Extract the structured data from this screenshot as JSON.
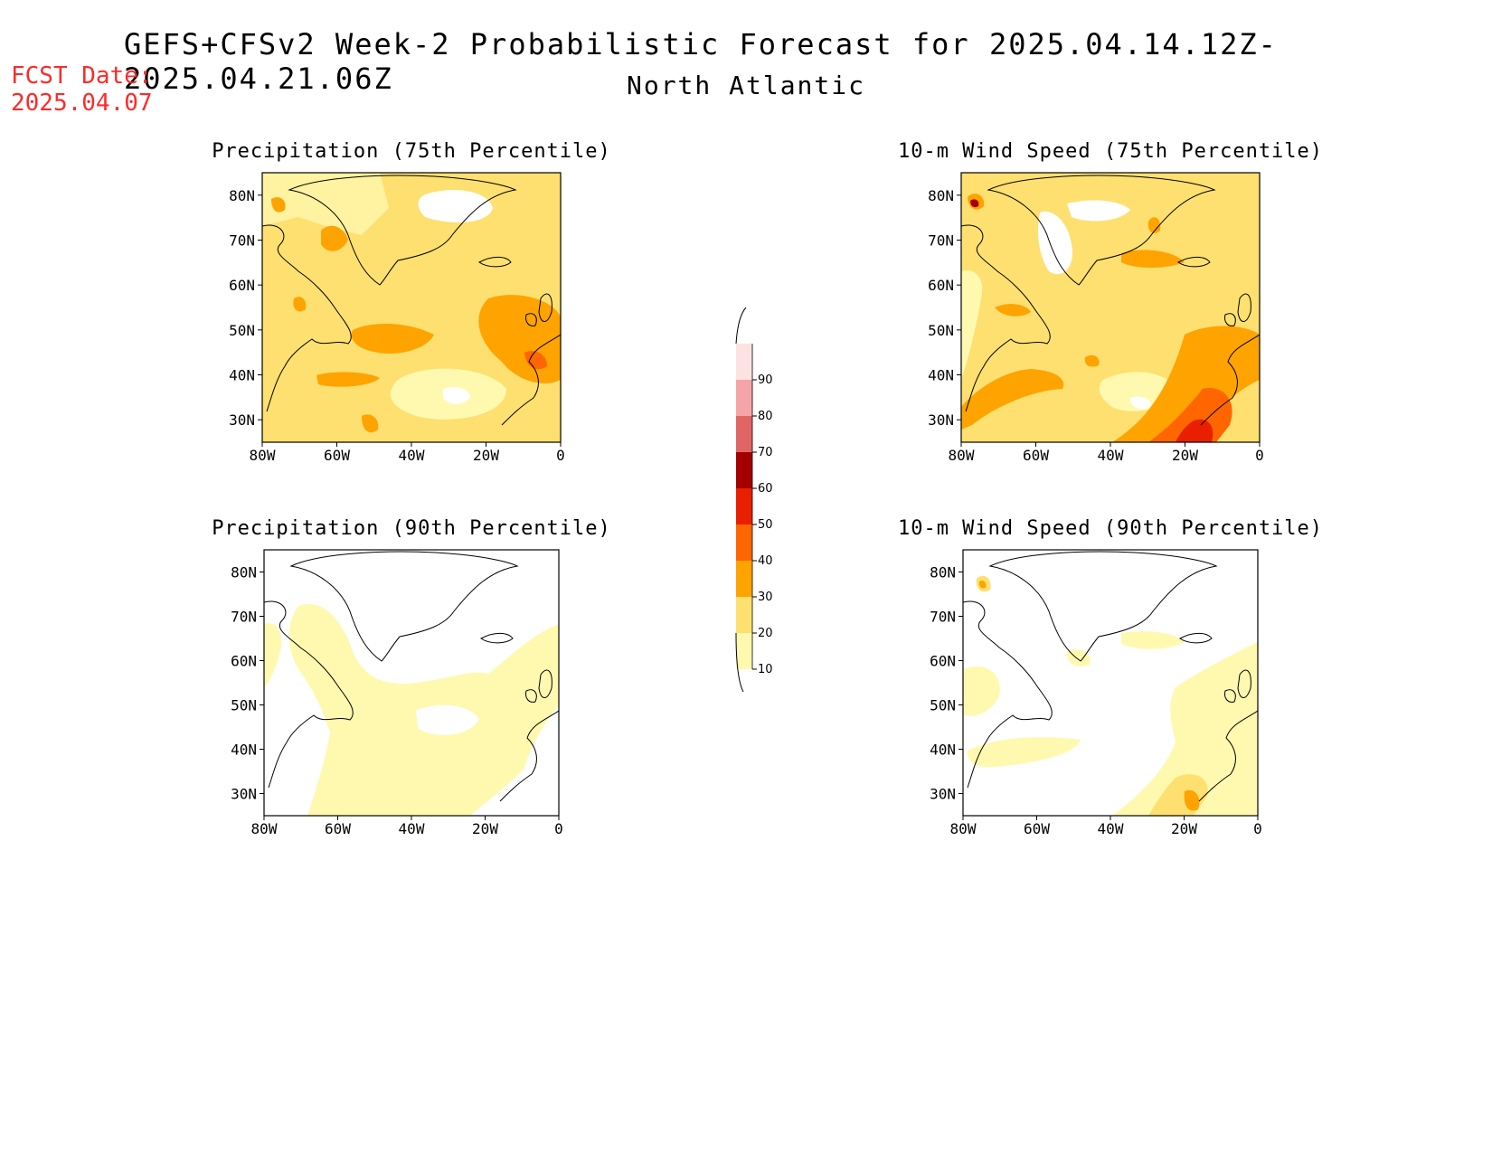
{
  "header": {
    "title": "GEFS+CFSv2 Week-2 Probabilistic Forecast for 2025.04.14.12Z-2025.04.21.06Z",
    "subtitle": "North Atlantic",
    "fcst_label": "FCST Date:",
    "fcst_date": "2025.04.07"
  },
  "colors": {
    "fcst_text": "#ff2a2a",
    "levels": [
      "#fff9b0",
      "#fde070",
      "#ffa300",
      "#ff6600",
      "#e82000",
      "#a50000",
      "#e06666",
      "#f5a5a5",
      "#fde2e2"
    ],
    "coastline": "#000000"
  },
  "colorbar": {
    "ticks": [
      "10",
      "20",
      "30",
      "40",
      "50",
      "60",
      "70",
      "80",
      "90"
    ]
  },
  "map_axes": {
    "lat_labels": [
      "80N",
      "70N",
      "60N",
      "50N",
      "40N",
      "30N"
    ],
    "lon_labels": [
      "80W",
      "60W",
      "40W",
      "20W",
      "0"
    ]
  },
  "panels": [
    {
      "id": "precip75",
      "title": "Precipitation (75th Percentile)",
      "base_level": 1
    },
    {
      "id": "wind75",
      "title": "10-m Wind Speed (75th Percentile)",
      "base_level": 1
    },
    {
      "id": "precip90",
      "title": "Precipitation (90th Percentile)",
      "base_level": -1
    },
    {
      "id": "wind90",
      "title": "10-m Wind Speed (90th Percentile)",
      "base_level": -1
    }
  ]
}
